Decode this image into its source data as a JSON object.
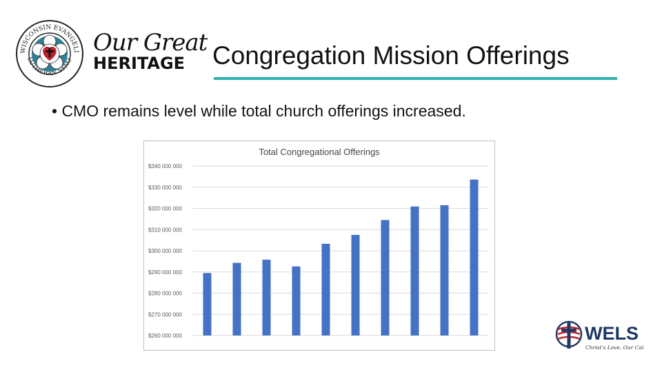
{
  "header": {
    "seal_text_top": "WISCONSIN EVANGELICAL",
    "seal_text_bottom": "LUTHERAN SYNOD",
    "tagline_script": "Our Great",
    "tagline_main": "HERITAGE",
    "title": "Congregation Mission Offerings",
    "accent_color": "#2ab3b0"
  },
  "body": {
    "bullet": "• CMO remains level while total church offerings increased."
  },
  "chart_data": {
    "type": "bar",
    "title": "Total Congregational Offerings",
    "xlabel": "",
    "ylabel": "",
    "ylim": [
      260000000,
      340000000
    ],
    "yticks": [
      340000000,
      330000000,
      320000000,
      310000000,
      300000000,
      290000000,
      280000000,
      270000000,
      260000000
    ],
    "ytick_labels": [
      "$340 000 000",
      "$330 000 000",
      "$320 000 000",
      "$310 000 000",
      "$300 000 000",
      "$290 000 000",
      "$280 000 000",
      "$270 000 000",
      "$260 000 000"
    ],
    "values": [
      289500000,
      294300000,
      295800000,
      292600000,
      303300000,
      307500000,
      314500000,
      320900000,
      321500000,
      333600000
    ],
    "bar_color": "#4472c4",
    "grid": true,
    "legend": false
  },
  "footer": {
    "logo_text": "WELS",
    "logo_tagline": "Christ's Love, Our Calling"
  }
}
